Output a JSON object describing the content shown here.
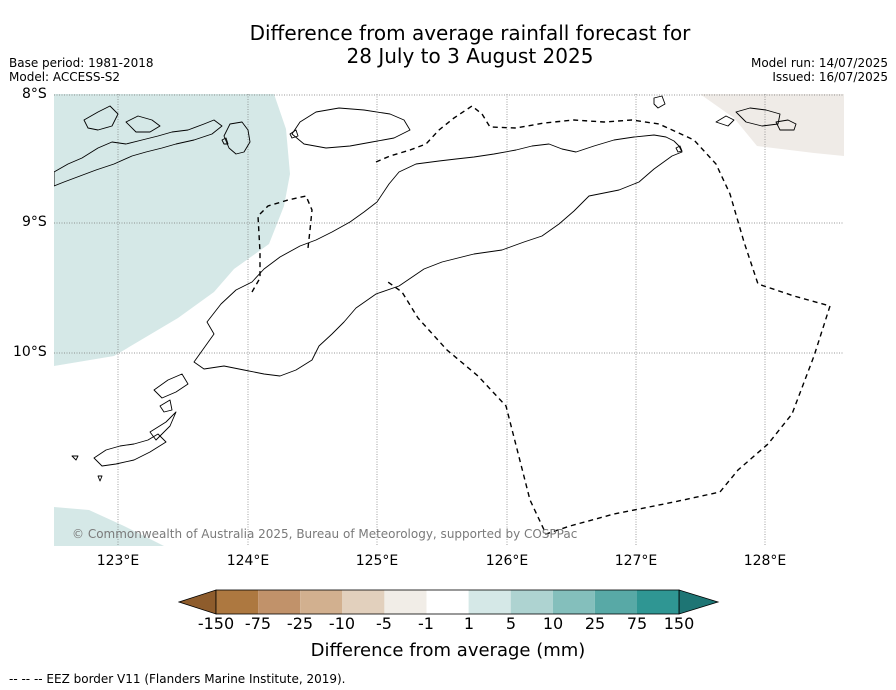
{
  "header": {
    "title_line1": "Difference from average rainfall forecast for",
    "title_line2": "28 July to 3 August 2025",
    "base_period": "Base period: 1981-2018",
    "model": "Model: ACCESS-S2",
    "model_run": "Model run: 14/07/2025",
    "issued": "Issued: 16/07/2025"
  },
  "axes": {
    "lat_labels": [
      "8°S",
      "9°S",
      "10°S"
    ],
    "lon_labels": [
      "123°E",
      "124°E",
      "125°E",
      "126°E",
      "127°E",
      "128°E"
    ]
  },
  "map": {
    "copyright": "© Commonwealth of Australia 2025, Bureau of Meteorology, supported by COSPPac",
    "wet_color": "#d5e8e7",
    "dry_color": "#efebe7"
  },
  "colorbar": {
    "title": "Difference from average (mm)",
    "labels": [
      "-150",
      "-75",
      "-25",
      "-10",
      "-5",
      "-1",
      "1",
      "5",
      "10",
      "25",
      "75",
      "150"
    ],
    "colors": [
      "#8e5c2c",
      "#ad7840",
      "#c1926a",
      "#d2b08f",
      "#e2d0bd",
      "#f1ede7",
      "#ffffff",
      "#d5e8e7",
      "#aed3d1",
      "#84bfbc",
      "#58a9a6",
      "#2f9693",
      "#1e7574"
    ]
  },
  "footer": {
    "legend": "--  --  -- EEZ border V11 (Flanders Marine Institute, 2019)."
  }
}
